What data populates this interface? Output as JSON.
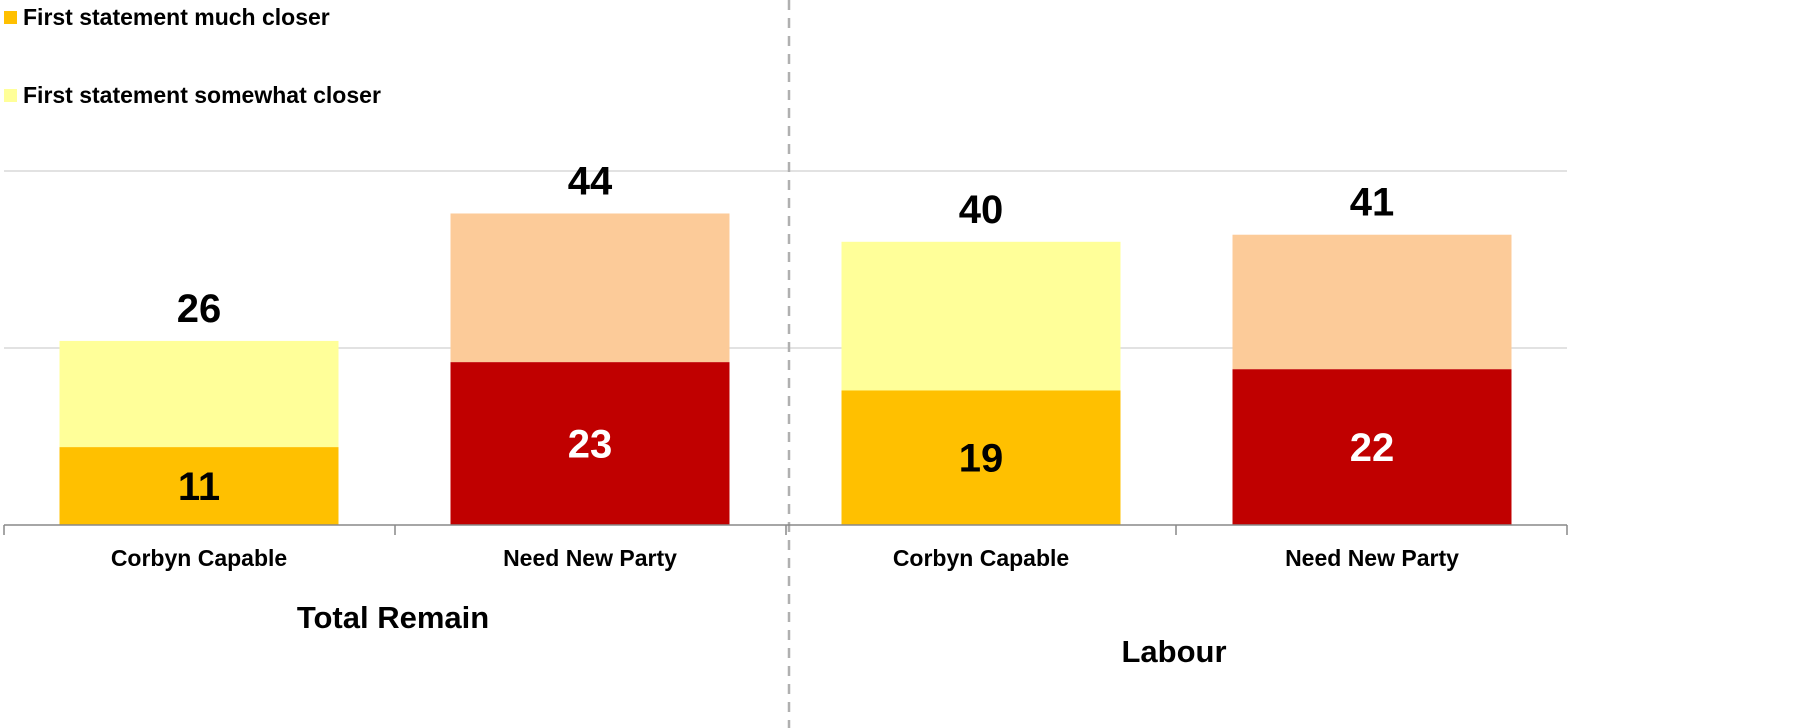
{
  "legend": {
    "items": [
      {
        "label": "First statement much closer",
        "color": "#FFC000"
      },
      {
        "label": "First statement somewhat closer",
        "color": "#FFFF99"
      }
    ]
  },
  "colors": {
    "much_corbyn": "#FFC000",
    "somewhat_corbyn": "#FFFF99",
    "much_newparty": "#C00000",
    "somewhat_newparty": "#FCCB99",
    "gridline": "#d9d9d9",
    "axis": "#888888",
    "divider": "#b0b0b0"
  },
  "chart_data": {
    "type": "bar",
    "stacked": true,
    "ylim": [
      0,
      50
    ],
    "grid": true,
    "legend_position": "top-left",
    "groups": [
      {
        "label": "Total Remain",
        "bars": [
          {
            "category": "Corbyn Capable",
            "much": 11,
            "total": 26
          },
          {
            "category": "Need New Party",
            "much": 23,
            "total": 44
          }
        ]
      },
      {
        "label": "Labour",
        "bars": [
          {
            "category": "Corbyn Capable",
            "much": 19,
            "total": 40
          },
          {
            "category": "Need New Party",
            "much": 22,
            "total": 41
          }
        ]
      }
    ]
  }
}
